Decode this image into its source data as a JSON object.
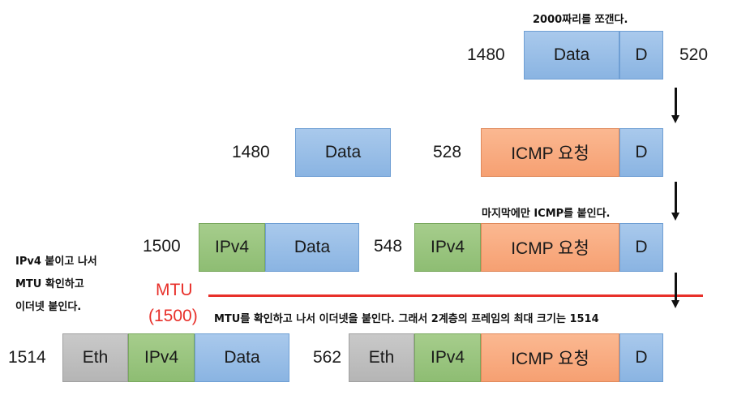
{
  "top_note": "2000짜리를 쪼갠다.",
  "row1": {
    "left_num": "1480",
    "right_num": "520",
    "data": "Data",
    "d": "D"
  },
  "row2": {
    "left_num": "1480",
    "data": "Data",
    "mid_num": "528",
    "icmp": "ICMP 요청",
    "d": "D"
  },
  "note_icmp": "마지막에만 ICMP를 붙인다.",
  "row3": {
    "left_num": "1500",
    "ipv4": "IPv4",
    "data": "Data",
    "mid_num": "548",
    "ipv4_b": "IPv4",
    "icmp": "ICMP 요청",
    "d": "D"
  },
  "side_note": {
    "line1": "IPv4 붙이고 나서",
    "line2": "MTU 확인하고",
    "line3": "이더넷 붙인다."
  },
  "mtu": {
    "label": "MTU",
    "value": "(1500)",
    "color": "#e8302a"
  },
  "mtu_note": "MTU를 확인하고 나서 이더넷을 붙인다. 그래서 2계층의 프레임의 최대 크기는 1514",
  "row4": {
    "left_num": "1514",
    "eth": "Eth",
    "ipv4": "IPv4",
    "data": "Data",
    "mid_num": "562",
    "eth_b": "Eth",
    "ipv4_b": "IPv4",
    "icmp": "ICMP 요청",
    "d": "D"
  }
}
